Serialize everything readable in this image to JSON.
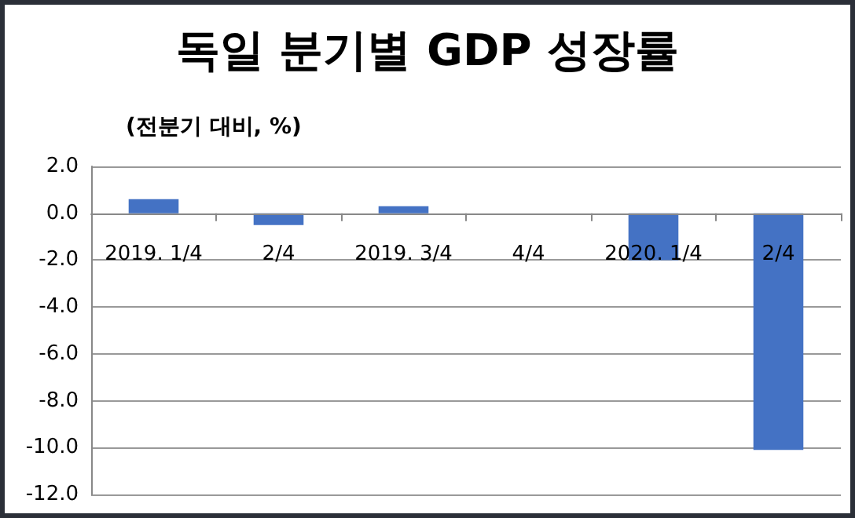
{
  "chart_data": {
    "type": "bar",
    "title": "독일 분기별 GDP 성장률",
    "subtitle": "(전분기 대비, %)",
    "categories": [
      "2019. 1/4",
      "2/4",
      "2019. 3/4",
      "4/4",
      "2020. 1/4",
      "2/4"
    ],
    "values": [
      0.6,
      -0.5,
      0.3,
      0.0,
      -2.0,
      -10.1
    ],
    "color": "#4472c4",
    "ylim": [
      -12,
      2
    ],
    "yticks": [
      {
        "value": -12,
        "label": "-12.0"
      },
      {
        "value": -10,
        "label": "-10.0"
      },
      {
        "value": -8,
        "label": "-8.0"
      },
      {
        "value": -6,
        "label": "-6.0"
      },
      {
        "value": -4,
        "label": "-4.0"
      },
      {
        "value": -2,
        "label": "-2.0"
      },
      {
        "value": 0,
        "label": "0.0"
      },
      {
        "value": 2,
        "label": "2.0"
      }
    ],
    "grid": "y"
  }
}
